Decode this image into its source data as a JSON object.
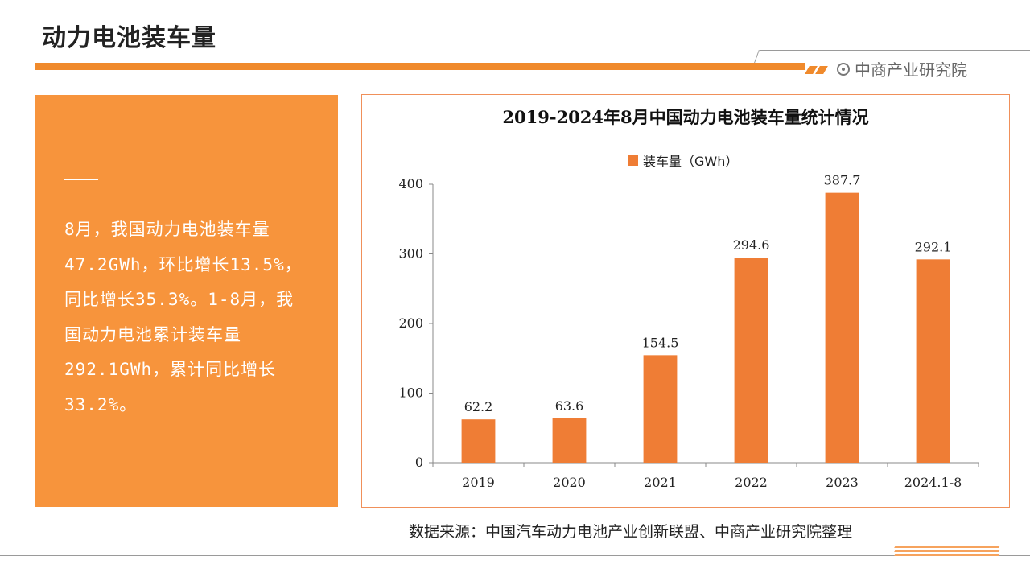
{
  "header": {
    "title": "动力电池装车量",
    "brand": "中商产业研究院"
  },
  "summary": {
    "lines": [
      "8月，我国动力电池装车量",
      "47.2GWh，环比增长13.5%，",
      "同比增长35.3%。1-8月，我",
      "国动力电池累计装车量",
      "292.1GWh，累计同比增长",
      "33.2%。"
    ]
  },
  "chart_data": {
    "type": "bar",
    "title": "2019-2024年8月中国动力电池装车量统计情况",
    "categories": [
      "2019",
      "2020",
      "2021",
      "2022",
      "2023",
      "2024.1-8"
    ],
    "series": [
      {
        "name": "装车量（GWh）",
        "values": [
          62.2,
          63.6,
          154.5,
          294.6,
          387.7,
          292.1
        ]
      }
    ],
    "ylim": [
      0,
      400
    ],
    "yticks": [
      0,
      100,
      200,
      300,
      400
    ],
    "xlabel": "",
    "ylabel": "",
    "legend": "top-center",
    "grid": false,
    "bar_color": "#ef7d35"
  },
  "footer": {
    "source": "数据来源：中国汽车动力电池产业创新联盟、中商产业研究院整理"
  },
  "colors": {
    "accent": "#f08a2c",
    "panel": "#f7943c"
  }
}
